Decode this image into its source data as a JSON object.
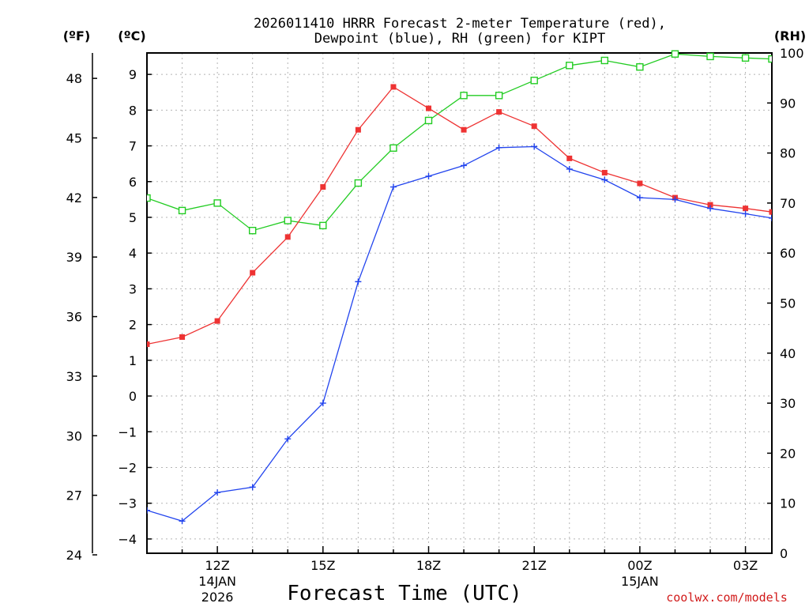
{
  "chart_data": {
    "type": "line",
    "title_line1": "2026011410 HRRR Forecast 2-meter Temperature (red),",
    "title_line2": "Dewpoint (blue), RH (green) for KIPT",
    "xlabel": "Forecast Time (UTC)",
    "credit": "coolwx.com/models",
    "units": {
      "fahrenheit": "(ºF)",
      "celsius": "(ºC)",
      "rh": "(RH)"
    },
    "x_range": [
      10,
      27.75
    ],
    "celsius_range": [
      -4.4,
      9.6
    ],
    "rh_range": [
      0,
      100
    ],
    "celsius_ticks": [
      -4,
      -3,
      -2,
      -1,
      0,
      1,
      2,
      3,
      4,
      5,
      6,
      7,
      8,
      9
    ],
    "fahrenheit_ticks": [
      24,
      27,
      30,
      33,
      36,
      39,
      42,
      45,
      48
    ],
    "rh_ticks": [
      0,
      10,
      20,
      30,
      40,
      50,
      60,
      70,
      80,
      90,
      100
    ],
    "x_ticks": [
      {
        "x": 12,
        "label": "12Z",
        "sub1": "14JAN",
        "sub2": "2026"
      },
      {
        "x": 15,
        "label": "15Z",
        "sub1": "",
        "sub2": ""
      },
      {
        "x": 18,
        "label": "18Z",
        "sub1": "",
        "sub2": ""
      },
      {
        "x": 21,
        "label": "21Z",
        "sub1": "",
        "sub2": ""
      },
      {
        "x": 24,
        "label": "00Z",
        "sub1": "15JAN",
        "sub2": ""
      },
      {
        "x": 27,
        "label": "03Z",
        "sub1": "",
        "sub2": ""
      }
    ],
    "x": [
      10,
      11,
      12,
      13,
      14,
      15,
      16,
      17,
      18,
      19,
      20,
      21,
      22,
      23,
      24,
      25,
      26,
      27,
      27.75
    ],
    "series": [
      {
        "name": "2-meter Temperature",
        "axis": "celsius",
        "color": "#ee3333",
        "marker": "filled-square",
        "values": [
          1.45,
          1.65,
          2.1,
          3.45,
          4.45,
          5.85,
          7.45,
          8.65,
          8.05,
          7.45,
          7.95,
          7.55,
          6.65,
          6.25,
          5.95,
          5.55,
          5.35,
          5.25,
          5.15
        ]
      },
      {
        "name": "Dewpoint",
        "axis": "celsius",
        "color": "#2244ee",
        "marker": "plus",
        "values": [
          -3.2,
          -3.5,
          -2.7,
          -2.55,
          -1.2,
          -0.2,
          3.2,
          5.85,
          6.15,
          6.45,
          6.95,
          6.98,
          6.35,
          6.05,
          5.55,
          5.5,
          5.25,
          5.1,
          4.98
        ]
      },
      {
        "name": "RH",
        "axis": "rh",
        "color": "#22cc22",
        "marker": "open-square",
        "values": [
          71,
          68.5,
          70,
          64.5,
          66.5,
          65.5,
          74,
          81,
          86.5,
          91.5,
          91.5,
          94.5,
          97.5,
          98.5,
          97.2,
          99.8,
          99.3,
          99,
          98.8
        ]
      }
    ]
  }
}
